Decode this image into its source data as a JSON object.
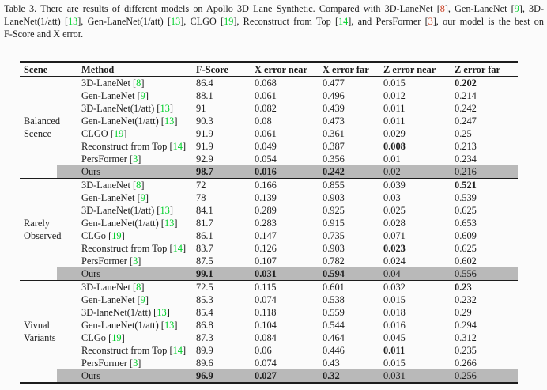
{
  "colors": {
    "green": "#00d02a",
    "red": "#c93a1d",
    "highlight": "#b9b9b9",
    "text": "#1c1c1c"
  },
  "caption": {
    "lines": [
      [
        {
          "t": "Table 3.  There are results of different models on Apollo 3D Lane Synthetic.  Compared with 3D-LaneNet ["
        },
        {
          "t": "8",
          "c": "red"
        },
        {
          "t": "], Gen-LaneNet ["
        },
        {
          "t": "9",
          "c": "green"
        },
        {
          "t": "], 3D-"
        }
      ],
      [
        {
          "t": "LaneNet(1/att) ["
        },
        {
          "t": "13",
          "c": "green"
        },
        {
          "t": "], Gen-LaneNet(1/att) ["
        },
        {
          "t": "13",
          "c": "green"
        },
        {
          "t": "], CLGO ["
        },
        {
          "t": "19",
          "c": "green"
        },
        {
          "t": "], Reconstruct from Top ["
        },
        {
          "t": "14",
          "c": "green"
        },
        {
          "t": "], and PersFormer ["
        },
        {
          "t": "3",
          "c": "red"
        },
        {
          "t": "], our model is the best on"
        }
      ],
      [
        {
          "t": "F-Score and X error."
        }
      ]
    ]
  },
  "table": {
    "columns": [
      "Scene",
      "Method",
      "F-Score",
      "X error near",
      "X error far",
      "Z error near",
      "Z error far"
    ],
    "sections": [
      {
        "scene": [
          "Balanced",
          "Scence"
        ],
        "rows": [
          {
            "method": "3D-LaneNet",
            "cite": "8",
            "cite_color": "green",
            "values": [
              "86.4",
              "0.068",
              "0.477",
              "0.015",
              "0.202"
            ],
            "bold": [
              4
            ],
            "highlight": false
          },
          {
            "method": "Gen-LaneNet",
            "cite": "9",
            "cite_color": "green",
            "values": [
              "88.1",
              "0.061",
              "0.496",
              "0.012",
              "0.214"
            ],
            "bold": [],
            "highlight": false
          },
          {
            "method": "3D-LaneNet(1/att)",
            "cite": "13",
            "cite_color": "green",
            "values": [
              "91",
              "0.082",
              "0.439",
              "0.011",
              "0.242"
            ],
            "bold": [],
            "highlight": false
          },
          {
            "method": "Gen-LaneNet(1/att)",
            "cite": "13",
            "cite_color": "green",
            "values": [
              "90.3",
              "0.08",
              "0.473",
              "0.011",
              "0.247"
            ],
            "bold": [],
            "highlight": false
          },
          {
            "method": "CLGO",
            "cite": "19",
            "cite_color": "green",
            "values": [
              "91.9",
              "0.061",
              "0.361",
              "0.029",
              "0.25"
            ],
            "bold": [],
            "highlight": false
          },
          {
            "method": "Reconstruct from Top",
            "cite": "14",
            "cite_color": "green",
            "values": [
              "91.9",
              "0.049",
              "0.387",
              "0.008",
              "0.213"
            ],
            "bold": [
              3
            ],
            "highlight": false
          },
          {
            "method": "PersFormer",
            "cite": "3",
            "cite_color": "green",
            "values": [
              "92.9",
              "0.054",
              "0.356",
              "0.01",
              "0.234"
            ],
            "bold": [],
            "highlight": false
          },
          {
            "method": "Ours",
            "cite": null,
            "cite_color": null,
            "values": [
              "98.7",
              "0.016",
              "0.242",
              "0.02",
              "0.216"
            ],
            "bold": [
              0,
              1,
              2
            ],
            "highlight": true
          }
        ]
      },
      {
        "scene": [
          "Rarely",
          "Observed"
        ],
        "rows": [
          {
            "method": "3D-LaneNet",
            "cite": "8",
            "cite_color": "green",
            "values": [
              "72",
              "0.166",
              "0.855",
              "0.039",
              "0.521"
            ],
            "bold": [
              4
            ],
            "highlight": false
          },
          {
            "method": "Gen-LaneNet",
            "cite": "9",
            "cite_color": "green",
            "values": [
              "78",
              "0.139",
              "0.903",
              "0.03",
              "0.539"
            ],
            "bold": [],
            "highlight": false
          },
          {
            "method": "3D-LaneNet(1/att)",
            "cite": "13",
            "cite_color": "green",
            "values": [
              "84.1",
              "0.289",
              "0.925",
              "0.025",
              "0.625"
            ],
            "bold": [],
            "highlight": false
          },
          {
            "method": "Gen-LaneNet(1/att)",
            "cite": "13",
            "cite_color": "green",
            "values": [
              "81.7",
              "0.283",
              "0.915",
              "0.028",
              "0.653"
            ],
            "bold": [],
            "highlight": false
          },
          {
            "method": "CLGo",
            "cite": "19",
            "cite_color": "green",
            "values": [
              "86.1",
              "0.147",
              "0.735",
              "0.071",
              "0.609"
            ],
            "bold": [],
            "highlight": false
          },
          {
            "method": "Reconstruct from Top",
            "cite": "14",
            "cite_color": "green",
            "values": [
              "83.7",
              "0.126",
              "0.903",
              "0.023",
              "0.625"
            ],
            "bold": [
              3
            ],
            "highlight": false
          },
          {
            "method": "PersFormer",
            "cite": "3",
            "cite_color": "green",
            "values": [
              "87.5",
              "0.107",
              "0.782",
              "0.024",
              "0.602"
            ],
            "bold": [],
            "highlight": false
          },
          {
            "method": "Ours",
            "cite": null,
            "cite_color": null,
            "values": [
              "99.1",
              "0.031",
              "0.594",
              "0.04",
              "0.556"
            ],
            "bold": [
              0,
              1,
              2
            ],
            "highlight": true
          }
        ]
      },
      {
        "scene": [
          "Vivual",
          "Variants"
        ],
        "rows": [
          {
            "method": "3D-LaneNet",
            "cite": "8",
            "cite_color": "green",
            "values": [
              "72.5",
              "0.115",
              "0.601",
              "0.032",
              "0.23"
            ],
            "bold": [
              4
            ],
            "highlight": false
          },
          {
            "method": "Gen-LaneNet",
            "cite": "9",
            "cite_color": "green",
            "values": [
              "85.3",
              "0.074",
              "0.538",
              "0.015",
              "0.232"
            ],
            "bold": [],
            "highlight": false
          },
          {
            "method": "3D-laneNet(1/att)",
            "cite": "13",
            "cite_color": "green",
            "values": [
              "85.4",
              "0.118",
              "0.559",
              "0.018",
              "0.29"
            ],
            "bold": [],
            "highlight": false
          },
          {
            "method": "Gen-LaneNet(1/att)",
            "cite": "13",
            "cite_color": "green",
            "values": [
              "86.8",
              "0.104",
              "0.544",
              "0.016",
              "0.294"
            ],
            "bold": [],
            "highlight": false
          },
          {
            "method": "CLGo",
            "cite": "19",
            "cite_color": "green",
            "values": [
              "87.3",
              "0.084",
              "0.464",
              "0.045",
              "0.312"
            ],
            "bold": [],
            "highlight": false
          },
          {
            "method": "Reconstruct from Top",
            "cite": "14",
            "cite_color": "green",
            "values": [
              "89.9",
              "0.06",
              "0.446",
              "0.011",
              "0.235"
            ],
            "bold": [
              3
            ],
            "highlight": false
          },
          {
            "method": "PersFormer",
            "cite": "3",
            "cite_color": "green",
            "values": [
              "89.6",
              "0.074",
              "0.43",
              "0.015",
              "0.266"
            ],
            "bold": [],
            "highlight": false
          },
          {
            "method": "Ours",
            "cite": null,
            "cite_color": null,
            "values": [
              "96.9",
              "0.027",
              "0.32",
              "0.031",
              "0.256"
            ],
            "bold": [
              0,
              1,
              2
            ],
            "highlight": true
          }
        ]
      }
    ]
  }
}
